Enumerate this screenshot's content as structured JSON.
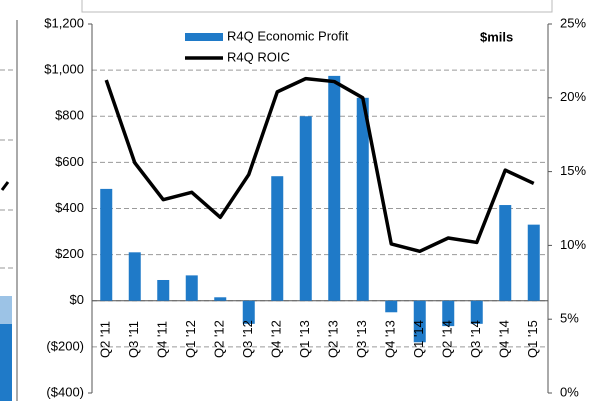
{
  "chart_data": {
    "type": "bar_line",
    "categories": [
      "Q2 '11",
      "Q3 '11",
      "Q4 '11",
      "Q1 '12",
      "Q2 '12",
      "Q3 '12",
      "Q4 '12",
      "Q1 '13",
      "Q2 '13",
      "Q3 '13",
      "Q4 '13",
      "Q1 '14",
      "Q2 '14",
      "Q3 '14",
      "Q4 '14",
      "Q1 '15"
    ],
    "unit_label": "$mils",
    "series": [
      {
        "name": "R4Q Economic Profit",
        "type": "bar",
        "color": "#1f7ac8",
        "values": [
          485,
          210,
          90,
          110,
          15,
          -100,
          540,
          800,
          975,
          880,
          -50,
          -180,
          -110,
          -100,
          415,
          330
        ]
      },
      {
        "name": "R4Q ROIC",
        "type": "line",
        "color": "#000000",
        "axis": "y2",
        "values": [
          21.2,
          15.6,
          13.1,
          13.6,
          11.9,
          14.8,
          20.4,
          21.3,
          21.1,
          20.0,
          10.1,
          9.6,
          10.5,
          10.2,
          15.1,
          14.2
        ]
      }
    ],
    "ylim": [
      -400,
      1200
    ],
    "yticks": [
      {
        "value": -400,
        "label": "($400)"
      },
      {
        "value": -200,
        "label": "($200)"
      },
      {
        "value": 0,
        "label": "$0"
      },
      {
        "value": 200,
        "label": "$200"
      },
      {
        "value": 400,
        "label": "$400"
      },
      {
        "value": 600,
        "label": "$600"
      },
      {
        "value": 800,
        "label": "$800"
      },
      {
        "value": 1000,
        "label": "$1,000"
      },
      {
        "value": 1200,
        "label": "$1,200"
      }
    ],
    "y2lim": [
      0,
      25
    ],
    "y2ticks": [
      {
        "value": 0,
        "label": "0%"
      },
      {
        "value": 5,
        "label": "5%"
      },
      {
        "value": 10,
        "label": "10%"
      },
      {
        "value": 15,
        "label": "15%"
      },
      {
        "value": 20,
        "label": "20%"
      },
      {
        "value": 25,
        "label": "25%"
      }
    ],
    "grid": true
  }
}
